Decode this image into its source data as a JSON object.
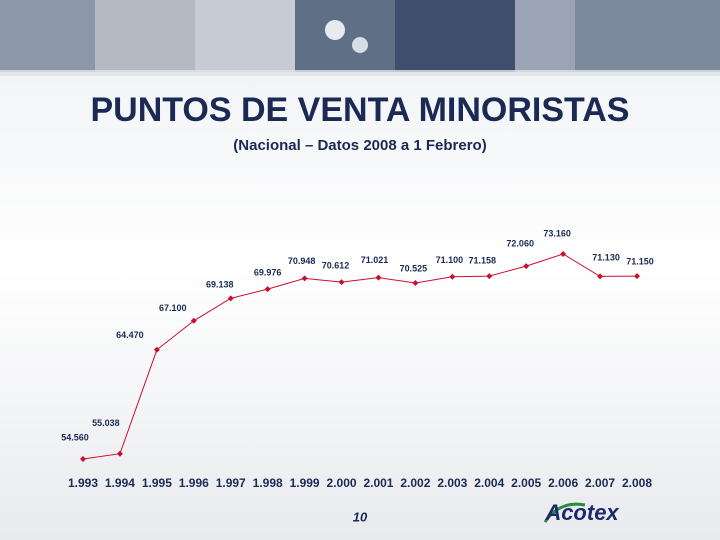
{
  "chart_data": {
    "type": "line",
    "title": "PUNTOS DE VENTA MINORISTAS",
    "subtitle": "(Nacional – Datos 2008 a 1 Febrero)",
    "categories": [
      "1.993",
      "1.994",
      "1.995",
      "1.996",
      "1.997",
      "1.998",
      "1.999",
      "2.000",
      "2.001",
      "2.002",
      "2.003",
      "2.004",
      "2.005",
      "2.006",
      "2.007",
      "2.008"
    ],
    "values": [
      54560,
      55038,
      64470,
      67100,
      69138,
      69976,
      70948,
      70612,
      71021,
      70525,
      71100,
      71158,
      72060,
      73160,
      71130,
      71150
    ],
    "value_labels": [
      "54.560",
      "55.038",
      "64.470",
      "67.100",
      "69.138",
      "69.976",
      "70.948",
      "70.612",
      "71.021",
      "70.525",
      "71.100",
      "71.158",
      "72.060",
      "73.160",
      "71.130",
      "71.150"
    ],
    "color": "#c8102e"
  },
  "page_number": "10",
  "logo": "Acotex"
}
